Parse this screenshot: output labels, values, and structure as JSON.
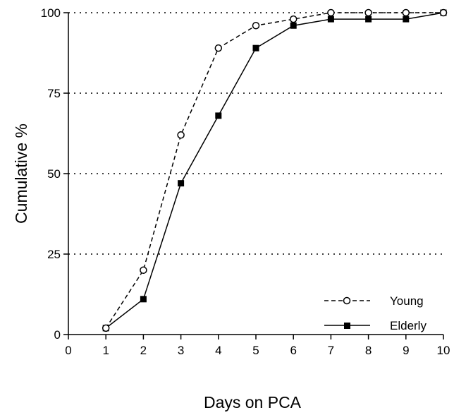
{
  "chart_data": {
    "type": "line",
    "title": "",
    "xlabel": "Days on PCA",
    "ylabel": "Cumulative %",
    "xlim": [
      0,
      10
    ],
    "ylim": [
      0,
      100
    ],
    "x_ticks": [
      0,
      1,
      2,
      3,
      4,
      5,
      6,
      7,
      8,
      9,
      10
    ],
    "y_ticks": [
      0,
      25,
      50,
      75,
      100
    ],
    "grid": "horizontal dotted lines at 25, 50, 75",
    "legend_position": "bottom-right",
    "series": [
      {
        "name": "Young",
        "line_style": "dashed",
        "marker": "open-circle",
        "color": "#000000",
        "x": [
          1,
          2,
          3,
          4,
          5,
          6,
          7,
          8,
          9,
          10
        ],
        "y": [
          2,
          20,
          62,
          89,
          96,
          98,
          100,
          100,
          100,
          100
        ]
      },
      {
        "name": "Elderly",
        "line_style": "solid",
        "marker": "filled-square",
        "color": "#000000",
        "x": [
          1,
          2,
          3,
          4,
          5,
          6,
          7,
          8,
          9,
          10
        ],
        "y": [
          2,
          11,
          47,
          68,
          89,
          96,
          98,
          98,
          98,
          100
        ]
      }
    ]
  }
}
